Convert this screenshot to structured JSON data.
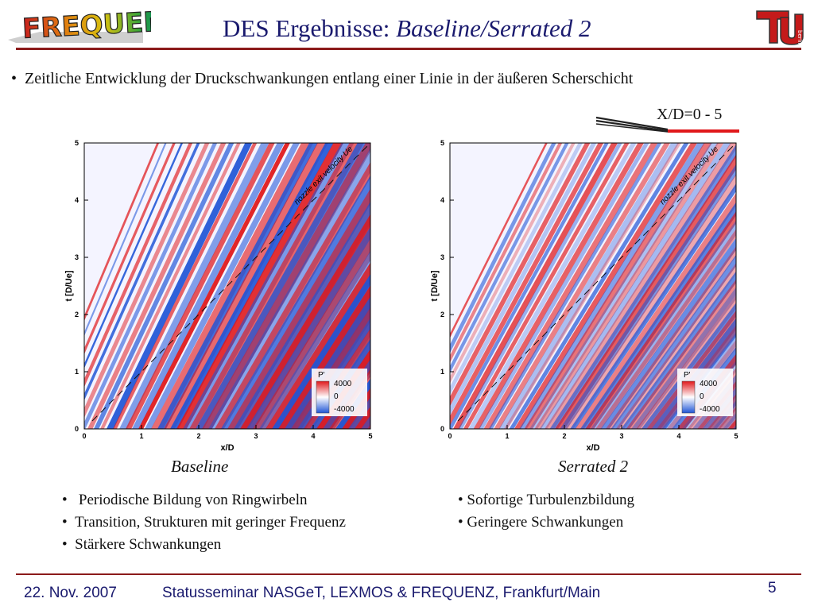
{
  "header": {
    "logo_text": "FREQUENZ",
    "title_plain": "DES Ergebnisse: ",
    "title_italic": "Baseline/Serrated 2",
    "tu_logo_text": "TU",
    "tu_logo_subtext": "berlin"
  },
  "main_bullet": "Zeitliche Entwicklung der Druckschwankungen entlang einer Linie in der äußeren Scherschicht",
  "range_label": "X/D=0 - 5",
  "colors": {
    "accent": "#8b1a1a",
    "title": "#1a1a6e",
    "positive": "#e0181b",
    "negative": "#1f55d6"
  },
  "plots": [
    {
      "caption": "Baseline",
      "xlabel": "x/D",
      "ylabel": "t [D/Ue]",
      "x_ticks": [
        "0",
        "1",
        "2",
        "3",
        "4",
        "5"
      ],
      "y_ticks": [
        "0",
        "1",
        "2",
        "3",
        "4",
        "5"
      ],
      "diagonal_label": "nozzle exit velocity Ue",
      "colorbar_title": "P'",
      "colorbar_ticks": [
        "4000",
        "0",
        "-4000"
      ],
      "bullets": [
        "Periodische Bildung von Ringwirbeln",
        "Transition, Strukturen mit geringer Frequenz",
        "Stärkere Schwankungen"
      ]
    },
    {
      "caption": "Serrated 2",
      "xlabel": "x/D",
      "ylabel": "t [D/Ue]",
      "x_ticks": [
        "0",
        "1",
        "2",
        "3",
        "4",
        "5"
      ],
      "y_ticks": [
        "0",
        "1",
        "2",
        "3",
        "4",
        "5"
      ],
      "diagonal_label": "nozzle exit velocity Ue",
      "colorbar_title": "P'",
      "colorbar_ticks": [
        "4000",
        "0",
        "-4000"
      ],
      "bullets": [
        "Sofortige Turbulenzbildung",
        "Geringere Schwankungen"
      ]
    }
  ],
  "footer": {
    "date": "22. Nov. 2007",
    "text": "Statusseminar NASGeT, LEXMOS & FREQUENZ, Frankfurt/Main",
    "page": "5"
  }
}
